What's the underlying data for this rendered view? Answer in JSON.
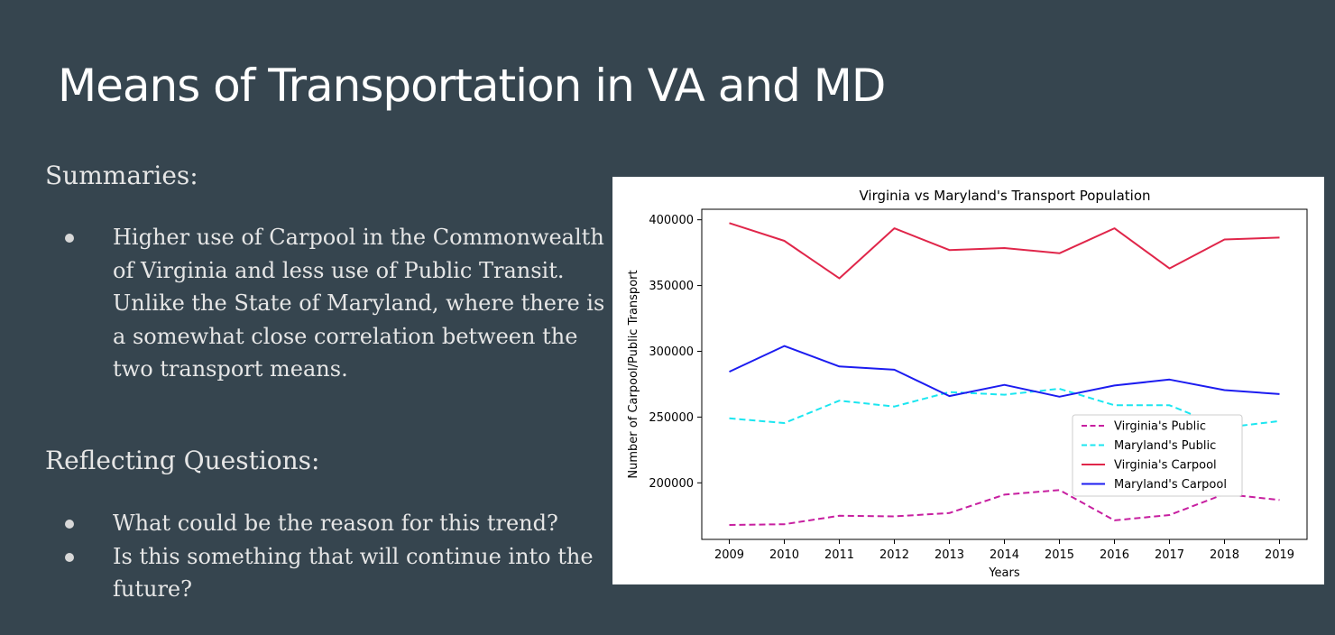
{
  "slide": {
    "title": "Means of Transportation in VA and MD",
    "summaries_heading": "Summaries:",
    "summaries": [
      "Higher use of Carpool in the Commonwealth of Virginia and less use of Public Transit. Unlike the State of Maryland, where there is a somewhat close correlation between the two transport means."
    ],
    "questions_heading": "Reflecting Questions:",
    "questions": [
      "What could be the reason for this trend?",
      "Is this something that will continue into the future?"
    ]
  },
  "colors": {
    "background": "#36454f",
    "virginia_public": "#c71fa0",
    "maryland_public": "#1be6f0",
    "virginia_carpool": "#e0264a",
    "maryland_carpool": "#1c1cf0"
  },
  "chart_data": {
    "type": "line",
    "title": "Virginia vs Maryland's Transport Population",
    "xlabel": "Years",
    "ylabel": "Number of Carpool/Public Transport",
    "x": [
      2009,
      2010,
      2011,
      2012,
      2013,
      2014,
      2015,
      2016,
      2017,
      2018,
      2019
    ],
    "xlim": [
      2008.5,
      2019.5
    ],
    "ylim": [
      157000,
      408000
    ],
    "yticks": [
      200000,
      250000,
      300000,
      350000,
      400000
    ],
    "grid": false,
    "legend_position": "center-right",
    "series": [
      {
        "name": "Virginia's Public",
        "style": "dashed",
        "color": "#c71fa0",
        "values": [
          168000,
          168500,
          175000,
          174500,
          177000,
          191000,
          194500,
          171500,
          175500,
          191500,
          187000
        ]
      },
      {
        "name": "Maryland's Public",
        "style": "dashed",
        "color": "#1be6f0",
        "values": [
          249000,
          245500,
          262500,
          258000,
          269000,
          267000,
          271500,
          259000,
          259000,
          242000,
          247000
        ]
      },
      {
        "name": "Virginia's Carpool",
        "style": "solid",
        "color": "#e0264a",
        "values": [
          397500,
          384000,
          355500,
          393500,
          377000,
          378500,
          374500,
          393500,
          363000,
          385000,
          386500
        ]
      },
      {
        "name": "Maryland's Carpool",
        "style": "solid",
        "color": "#1c1cf0",
        "values": [
          284500,
          304000,
          288500,
          286000,
          266000,
          274500,
          265500,
          274000,
          278500,
          270500,
          267500
        ]
      }
    ]
  }
}
